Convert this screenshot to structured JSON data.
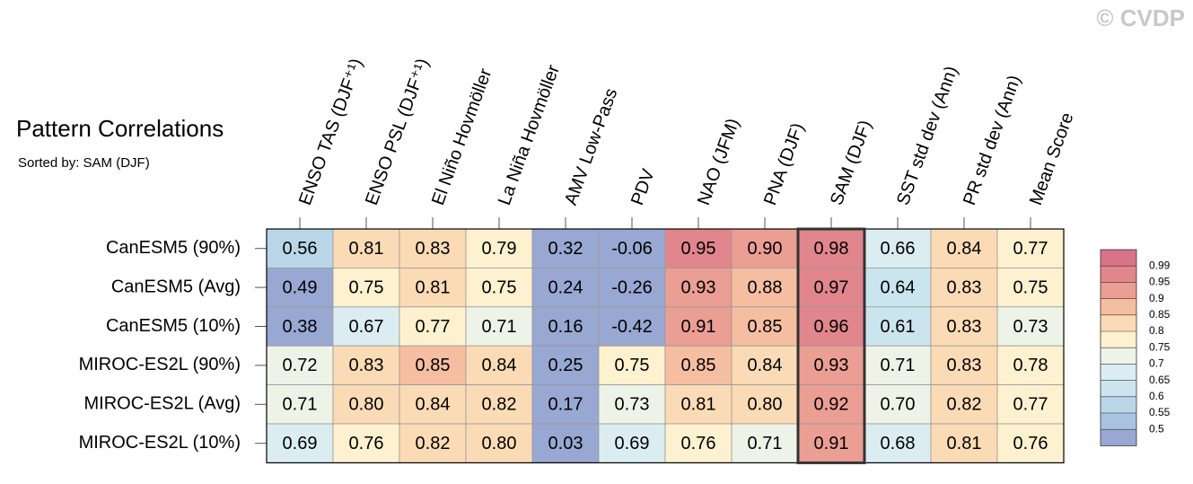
{
  "chart_data": {
    "type": "heatmap",
    "title": "Pattern Correlations",
    "subtitle": "Sorted by: SAM (DJF)",
    "annotation": "© CVDP",
    "columns": [
      "ENSO TAS (DJF⁺¹)",
      "ENSO PSL (DJF⁺¹)",
      "El Niño Hovmöller",
      "La Niña Hovmöller",
      "AMV Low-Pass",
      "PDV",
      "NAO (JFM)",
      "PNA (DJF)",
      "SAM (DJF)",
      "SST std dev (Ann)",
      "PR std dev (Ann)",
      "Mean Score"
    ],
    "rows": [
      "CanESM5 (90%)",
      "CanESM5 (Avg)",
      "CanESM5 (10%)",
      "MIROC-ES2L (90%)",
      "MIROC-ES2L (Avg)",
      "MIROC-ES2L (10%)"
    ],
    "values": [
      [
        0.56,
        0.81,
        0.83,
        0.79,
        0.32,
        -0.06,
        0.95,
        0.9,
        0.98,
        0.66,
        0.84,
        0.77
      ],
      [
        0.49,
        0.75,
        0.81,
        0.75,
        0.24,
        -0.26,
        0.93,
        0.88,
        0.97,
        0.64,
        0.83,
        0.75
      ],
      [
        0.38,
        0.67,
        0.77,
        0.71,
        0.16,
        -0.42,
        0.91,
        0.85,
        0.96,
        0.61,
        0.83,
        0.73
      ],
      [
        0.72,
        0.83,
        0.85,
        0.84,
        0.25,
        0.75,
        0.85,
        0.84,
        0.93,
        0.71,
        0.83,
        0.78
      ],
      [
        0.71,
        0.8,
        0.84,
        0.82,
        0.17,
        0.73,
        0.81,
        0.8,
        0.92,
        0.7,
        0.82,
        0.77
      ],
      [
        0.69,
        0.76,
        0.82,
        0.8,
        0.03,
        0.69,
        0.76,
        0.71,
        0.91,
        0.68,
        0.81,
        0.76
      ]
    ],
    "value_labels": [
      [
        "0.56",
        "0.81",
        "0.83",
        "0.79",
        "0.32",
        "-0.06",
        "0.95",
        "0.90",
        "0.98",
        "0.66",
        "0.84",
        "0.77"
      ],
      [
        "0.49",
        "0.75",
        "0.81",
        "0.75",
        "0.24",
        "-0.26",
        "0.93",
        "0.88",
        "0.97",
        "0.64",
        "0.83",
        "0.75"
      ],
      [
        "0.38",
        "0.67",
        "0.77",
        "0.71",
        "0.16",
        "-0.42",
        "0.91",
        "0.85",
        "0.96",
        "0.61",
        "0.83",
        "0.73"
      ],
      [
        "0.72",
        "0.83",
        "0.85",
        "0.84",
        "0.25",
        "0.75",
        "0.85",
        "0.84",
        "0.93",
        "0.71",
        "0.83",
        "0.78"
      ],
      [
        "0.71",
        "0.80",
        "0.84",
        "0.82",
        "0.17",
        "0.73",
        "0.81",
        "0.80",
        "0.92",
        "0.70",
        "0.82",
        "0.77"
      ],
      [
        "0.69",
        "0.76",
        "0.82",
        "0.80",
        "0.03",
        "0.69",
        "0.76",
        "0.71",
        "0.91",
        "0.68",
        "0.81",
        "0.76"
      ]
    ],
    "levels": [
      0.5,
      0.55,
      0.6,
      0.65,
      0.7,
      0.75,
      0.8,
      0.85,
      0.9,
      0.95,
      0.99
    ],
    "colors": [
      "#98a8d2",
      "#a9c3e0",
      "#b9d6e8",
      "#cbe5ef",
      "#dcedf2",
      "#eef3e8",
      "#fdf1cf",
      "#fbdbb5",
      "#f5bea1",
      "#eb9e94",
      "#e0868c",
      "#d87388"
    ],
    "highlight_column": 8
  }
}
